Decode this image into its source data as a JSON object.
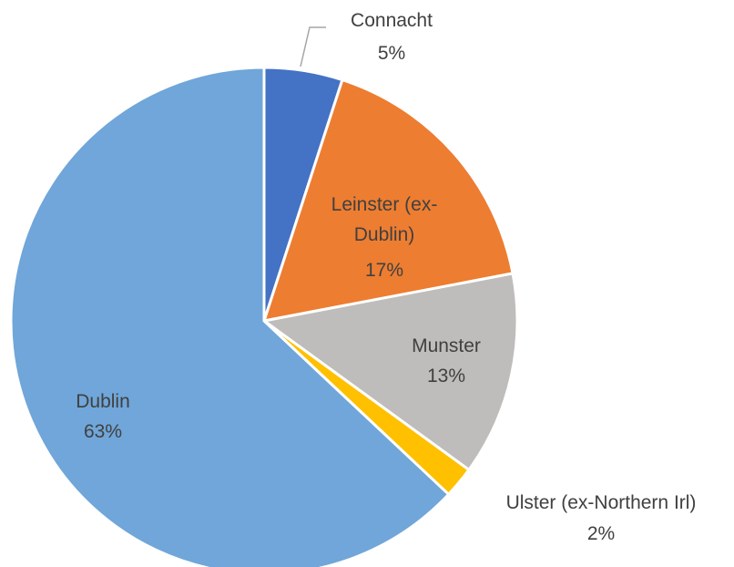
{
  "chart_data": {
    "type": "pie",
    "categories": [
      "Connacht",
      "Leinster (ex-Dublin)",
      "Munster",
      "Ulster (ex-Northern Irl)",
      "Dublin"
    ],
    "values": [
      5,
      17,
      13,
      2,
      63
    ],
    "value_labels": [
      "5%",
      "17%",
      "13%",
      "2%",
      "63%"
    ],
    "colors": [
      "#4472c4",
      "#ed7d31",
      "#bfbdbb",
      "#ffc000",
      "#70a6d9"
    ]
  }
}
